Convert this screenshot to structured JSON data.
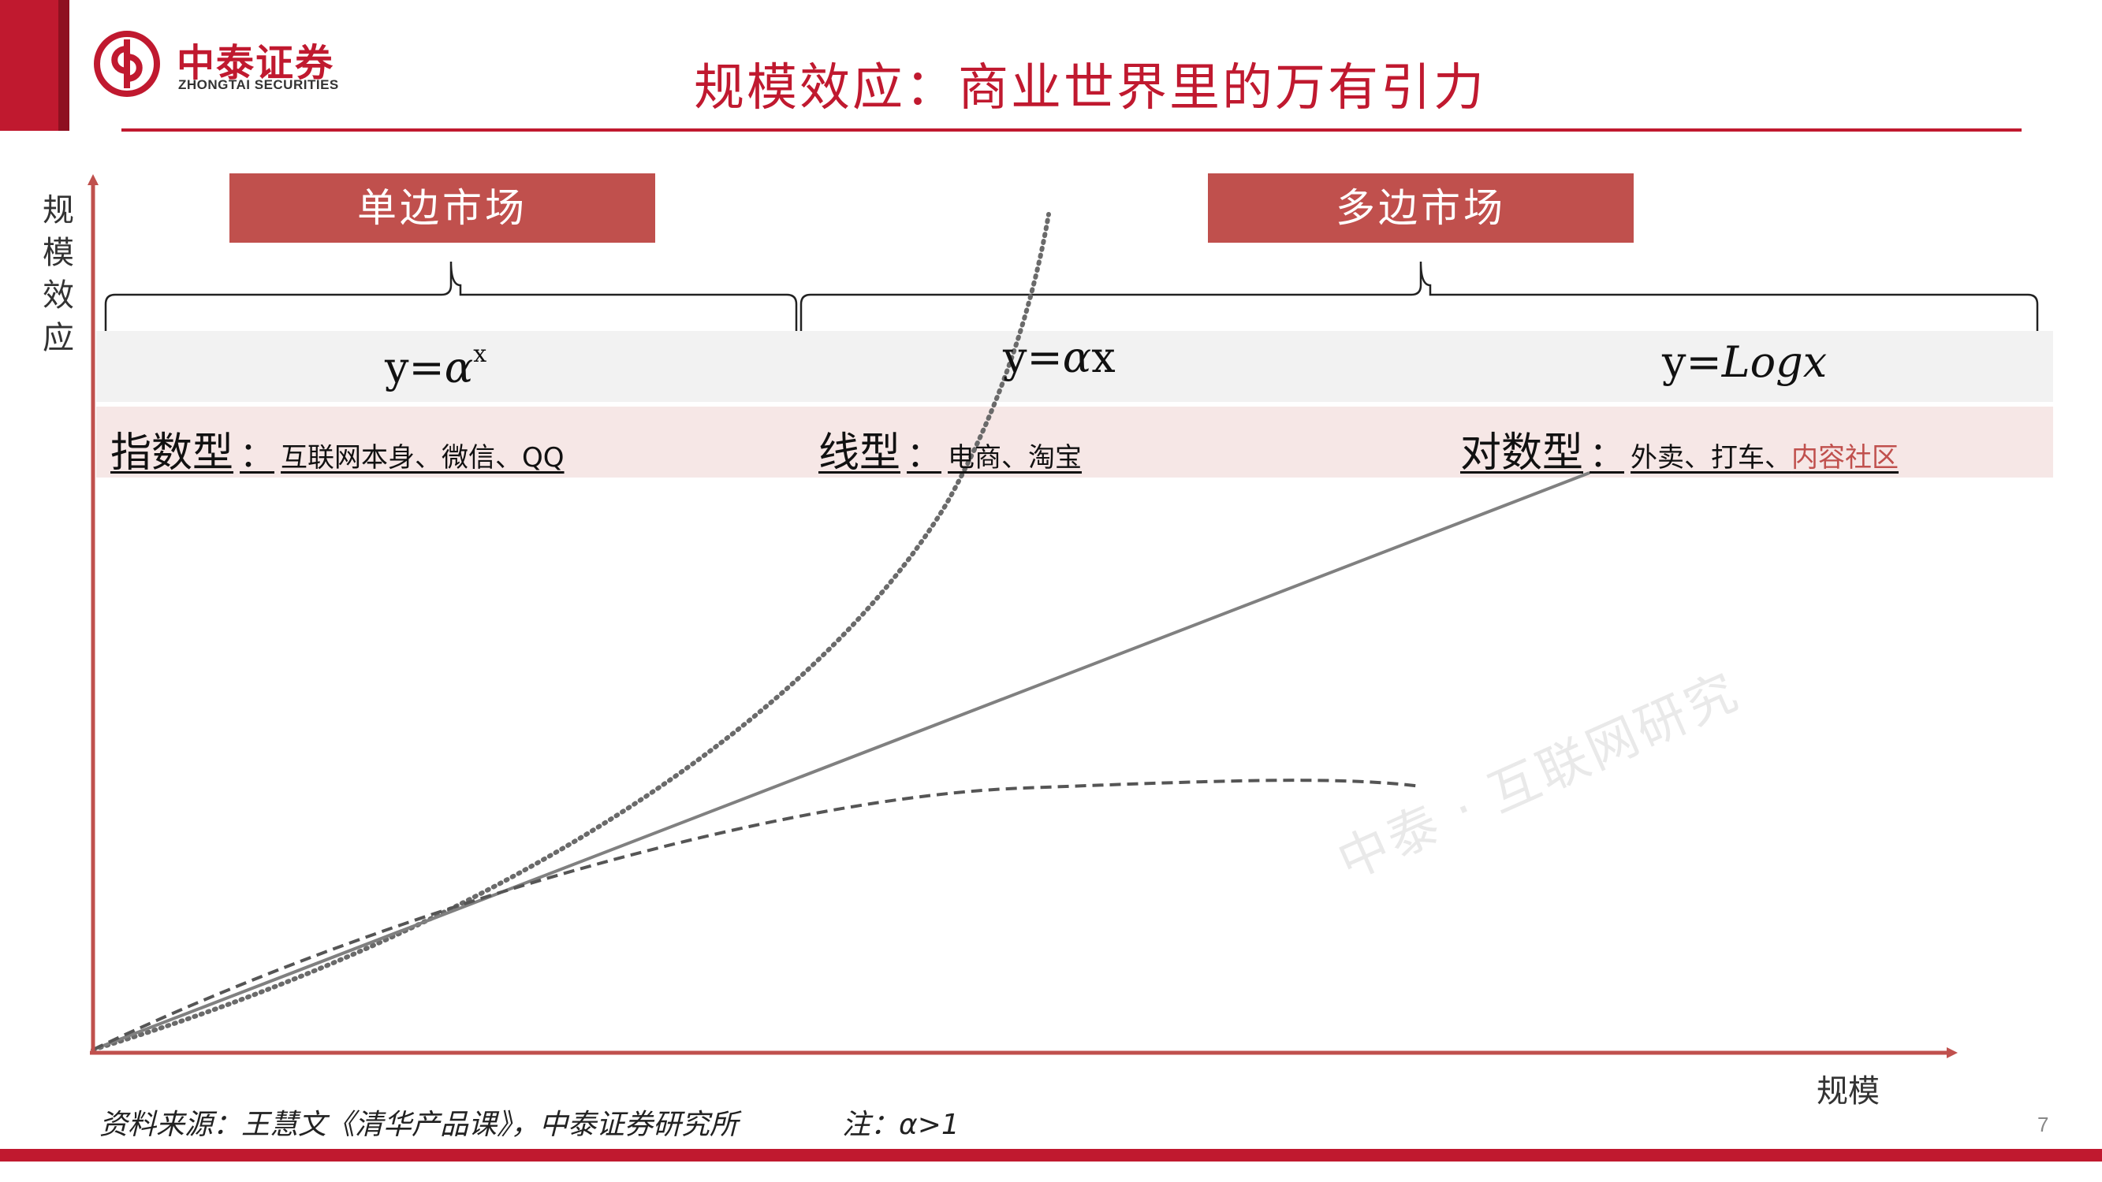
{
  "colors": {
    "brand_red": "#c0192f",
    "box_red": "#c0504d",
    "formula_band": "#f2f2f2",
    "type_band": "#f6e7e6",
    "axis": "#c0504d",
    "curve": "#777777"
  },
  "header": {
    "logo_cn": "中泰证券",
    "logo_en": "ZHONGTAI SECURITIES",
    "title": "规模效应：商业世界里的万有引力"
  },
  "markets": {
    "single": "单边市场",
    "multi": "多边市场"
  },
  "formulas": {
    "exponential": {
      "lhs": "y",
      "eq": "=",
      "base": "α",
      "exp": "x"
    },
    "linear": {
      "lhs": "y",
      "eq": "=",
      "coef": "α",
      "var": "x"
    },
    "log": {
      "lhs": "y",
      "eq": "=",
      "func": "Logx"
    }
  },
  "types": {
    "exponential": {
      "name": "指数型",
      "sep": "：",
      "examples": "互联网本身、微信、QQ"
    },
    "linear": {
      "name": "线型",
      "sep": "：",
      "examples": "电商、淘宝"
    },
    "log": {
      "name": "对数型",
      "sep": "：",
      "examples": "外卖、打车、",
      "highlight": "内容社区"
    }
  },
  "axes": {
    "y_label": "规模效应",
    "x_label": "规模"
  },
  "watermark": "中泰 · 互联网研究",
  "footer": {
    "source": "资料来源：王慧文《清华产品课》，中泰证券研究所",
    "note": "注：α>1",
    "page": "7"
  }
}
